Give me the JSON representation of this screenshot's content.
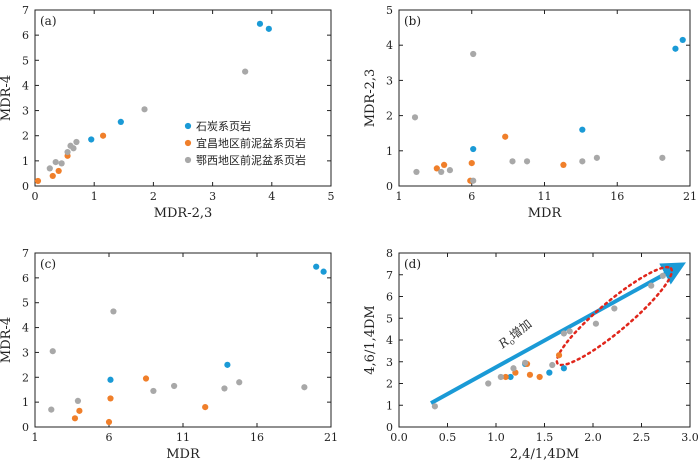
{
  "colors": {
    "石炭系页岩": "#1a9ad6",
    "宜昌地区前泥盆系页岩": "#f07f2a",
    "鄂西地区前泥盆系页岩": "#a8a8a8",
    "arrow": "#1a9ad6",
    "ellipse": "#e0261b"
  },
  "legend": [
    "石炭系页岩",
    "宜昌地区前泥盆系页岩",
    "鄂西地区前泥盆系页岩"
  ],
  "chart_data": [
    {
      "panel": "(a)",
      "type": "scatter",
      "xlabel": "MDR-2,3",
      "ylabel": "MDR-4",
      "xlim": [
        0,
        5
      ],
      "ylim": [
        0,
        7
      ],
      "xticks": [
        "0",
        "1",
        "2",
        "3",
        "4",
        "5"
      ],
      "yticks": [
        "0",
        "1",
        "2",
        "3",
        "4",
        "5",
        "6",
        "7"
      ],
      "legend_position": "center-right",
      "series": [
        {
          "name": "石炭系页岩",
          "points": [
            [
              0.95,
              1.85
            ],
            [
              1.45,
              2.55
            ],
            [
              3.8,
              6.45
            ],
            [
              3.95,
              6.25
            ]
          ]
        },
        {
          "name": "宜昌地区前泥盆系页岩",
          "points": [
            [
              0.05,
              0.2
            ],
            [
              0.3,
              0.4
            ],
            [
              0.4,
              0.6
            ],
            [
              0.55,
              1.2
            ],
            [
              1.15,
              2.0
            ]
          ]
        },
        {
          "name": "鄂西地区前泥盆系页岩",
          "points": [
            [
              0.25,
              0.7
            ],
            [
              0.35,
              0.95
            ],
            [
              0.45,
              0.9
            ],
            [
              0.55,
              1.35
            ],
            [
              0.6,
              1.6
            ],
            [
              0.65,
              1.5
            ],
            [
              0.7,
              1.75
            ],
            [
              1.85,
              3.05
            ],
            [
              3.55,
              4.55
            ]
          ]
        }
      ]
    },
    {
      "panel": "(b)",
      "type": "scatter",
      "xlabel": "MDR",
      "ylabel": "MDR-2,3",
      "xlim": [
        1,
        21
      ],
      "ylim": [
        0,
        5
      ],
      "xticks": [
        "1",
        "6",
        "11",
        "16",
        "21"
      ],
      "yticks": [
        "0",
        "1",
        "2",
        "3",
        "4",
        "5"
      ],
      "series": [
        {
          "name": "石炭系页岩",
          "points": [
            [
              6.1,
              1.05
            ],
            [
              13.6,
              1.6
            ],
            [
              20.0,
              3.9
            ],
            [
              20.5,
              4.15
            ]
          ]
        },
        {
          "name": "宜昌地区前泥盆系页岩",
          "points": [
            [
              3.6,
              0.5
            ],
            [
              4.1,
              0.6
            ],
            [
              5.9,
              0.15
            ],
            [
              6.0,
              0.65
            ],
            [
              8.3,
              1.4
            ],
            [
              12.3,
              0.6
            ]
          ]
        },
        {
          "name": "鄂西地区前泥盆系页岩",
          "points": [
            [
              2.1,
              1.95
            ],
            [
              2.2,
              0.4
            ],
            [
              3.9,
              0.4
            ],
            [
              4.5,
              0.45
            ],
            [
              6.1,
              3.75
            ],
            [
              6.1,
              0.15
            ],
            [
              8.8,
              0.7
            ],
            [
              9.8,
              0.7
            ],
            [
              13.6,
              0.7
            ],
            [
              14.6,
              0.8
            ],
            [
              19.1,
              0.8
            ]
          ]
        }
      ]
    },
    {
      "panel": "(c)",
      "type": "scatter",
      "xlabel": "MDR",
      "ylabel": "MDR-4",
      "xlim": [
        1,
        21
      ],
      "ylim": [
        0,
        7
      ],
      "xticks": [
        "1",
        "6",
        "11",
        "16",
        "21"
      ],
      "yticks": [
        "0",
        "1",
        "2",
        "3",
        "4",
        "5",
        "6",
        "7"
      ],
      "series": [
        {
          "name": "石炭系页岩",
          "points": [
            [
              6.1,
              1.9
            ],
            [
              14.0,
              2.5
            ],
            [
              20.0,
              6.45
            ],
            [
              20.5,
              6.25
            ]
          ]
        },
        {
          "name": "宜昌地区前泥盆系页岩",
          "points": [
            [
              3.7,
              0.35
            ],
            [
              4.0,
              0.65
            ],
            [
              6.0,
              0.2
            ],
            [
              6.1,
              1.15
            ],
            [
              8.5,
              1.95
            ],
            [
              12.5,
              0.8
            ]
          ]
        },
        {
          "name": "鄂西地区前泥盆系页岩",
          "points": [
            [
              2.2,
              3.05
            ],
            [
              2.1,
              0.7
            ],
            [
              3.9,
              1.05
            ],
            [
              6.3,
              4.65
            ],
            [
              9.0,
              1.45
            ],
            [
              10.4,
              1.65
            ],
            [
              13.8,
              1.55
            ],
            [
              14.8,
              1.8
            ],
            [
              19.2,
              1.6
            ]
          ]
        }
      ]
    },
    {
      "panel": "(d)",
      "type": "scatter",
      "xlabel": "2,4/1,4DM",
      "ylabel": "4,6/1,4DM",
      "xlim": [
        0,
        3
      ],
      "ylim": [
        0,
        8
      ],
      "xticks": [
        "0.0",
        "0.5",
        "1.0",
        "1.5",
        "2.0",
        "2.5",
        "3.0"
      ],
      "yticks": [
        "0",
        "1",
        "2",
        "3",
        "4",
        "5",
        "6",
        "7",
        "8"
      ],
      "annotation": {
        "base": "R",
        "sub": "o",
        "suffix": "增加"
      },
      "arrow": {
        "from": [
          0.33,
          1.1
        ],
        "to": [
          2.85,
          7.3
        ]
      },
      "ellipse_note": "dotted outline around the high-maturity trend",
      "series": [
        {
          "name": "石炭系页岩",
          "points": [
            [
              1.15,
              2.3
            ],
            [
              1.3,
              2.9
            ],
            [
              1.55,
              2.5
            ],
            [
              1.7,
              2.7
            ]
          ]
        },
        {
          "name": "宜昌地区前泥盆系页岩",
          "points": [
            [
              1.1,
              2.3
            ],
            [
              1.2,
              2.5
            ],
            [
              1.35,
              2.4
            ],
            [
              1.45,
              2.3
            ],
            [
              1.65,
              3.3
            ],
            [
              1.32,
              2.9
            ]
          ]
        },
        {
          "name": "鄂西地区前泥盆系页岩",
          "points": [
            [
              0.37,
              0.95
            ],
            [
              0.92,
              2.0
            ],
            [
              1.05,
              2.3
            ],
            [
              1.18,
              2.7
            ],
            [
              1.3,
              2.95
            ],
            [
              1.58,
              2.85
            ],
            [
              1.7,
              4.3
            ],
            [
              1.76,
              4.4
            ],
            [
              2.03,
              4.75
            ],
            [
              2.22,
              5.45
            ],
            [
              2.6,
              6.5
            ],
            [
              2.72,
              6.95
            ]
          ]
        }
      ]
    }
  ]
}
